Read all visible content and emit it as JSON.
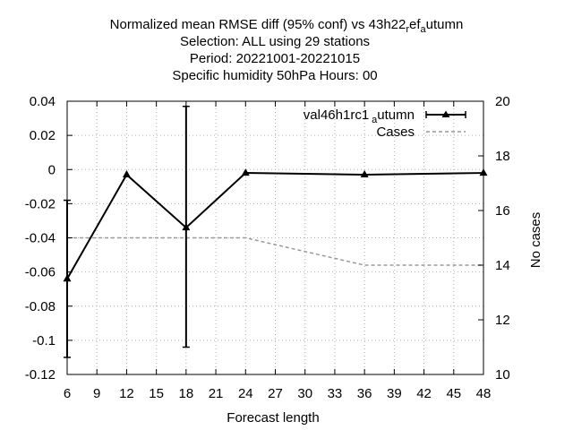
{
  "chart_data": {
    "type": "line",
    "title_lines": [
      "Normalized mean RMSE diff (95% conf) vs 43h22",
      "Selection: ALL using    29 stations",
      "Period: 20221001-20221015",
      "Specific humidity 50hPa   Hours:  00"
    ],
    "title_suffix": {
      "pre1": "r",
      "mid": "ef",
      "pre2": "a",
      "post": "utumn"
    },
    "xlabel": "Forecast length",
    "ylabel": "",
    "y2label": "No cases",
    "x_ticks": [
      6,
      9,
      12,
      15,
      18,
      21,
      24,
      27,
      30,
      33,
      36,
      39,
      42,
      45,
      48
    ],
    "y_ticks": [
      -0.12,
      -0.1,
      -0.08,
      -0.06,
      -0.04,
      -0.02,
      0,
      0.02,
      0.04
    ],
    "y_tick_labels": [
      "-0.12",
      "-0.1",
      "-0.08",
      "-0.06",
      "-0.04",
      "-0.02",
      "0",
      "0.02",
      "0.04"
    ],
    "y2_ticks": [
      10,
      12,
      14,
      16,
      18,
      20
    ],
    "xlim": [
      6,
      48
    ],
    "ylim": [
      -0.12,
      0.04
    ],
    "y2lim": [
      10,
      20
    ],
    "legend_position": "top-right",
    "series": [
      {
        "name": "val46h1rc1",
        "name_sub": "a",
        "name_post": "utumn",
        "axis": "left",
        "color": "#000000",
        "marker": "triangle",
        "x": [
          6,
          12,
          18,
          24,
          36,
          48
        ],
        "y": [
          -0.064,
          -0.003,
          -0.034,
          -0.002,
          -0.003,
          -0.002
        ],
        "err_low": [
          -0.11,
          null,
          -0.104,
          null,
          null,
          null
        ],
        "err_high": [
          -0.018,
          null,
          0.037,
          null,
          null,
          null
        ]
      },
      {
        "name": "Cases",
        "axis": "right",
        "color": "#999999",
        "dashed": true,
        "x": [
          6,
          12,
          18,
          24,
          36,
          48
        ],
        "y": [
          15,
          15,
          15,
          15,
          14,
          14
        ]
      }
    ]
  }
}
